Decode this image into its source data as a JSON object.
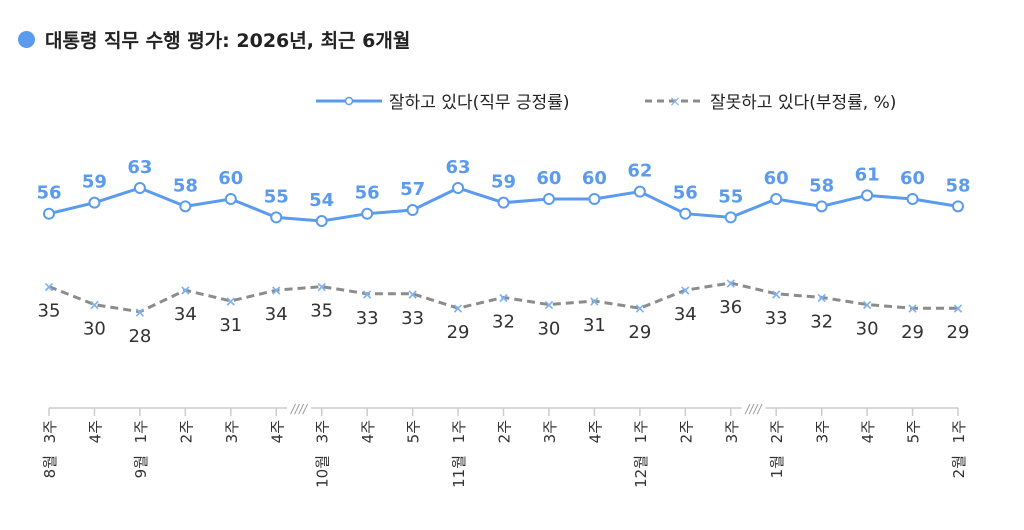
{
  "title": "대통령 직무 수행 평가: 2026년, 최근 6개월",
  "colors": {
    "positive": "#5b9bed",
    "negative": "#8c8c8c",
    "negative_marker": "#7fb3f0",
    "axis": "#cccccc",
    "title_dot": "#5b9bed"
  },
  "chart_data": {
    "type": "line",
    "title": "대통령 직무 수행 평가: 2026년, 최근 6개월",
    "x_weeks": [
      "3주",
      "4주",
      "1주",
      "2주",
      "3주",
      "4주",
      "3주",
      "4주",
      "5주",
      "1주",
      "2주",
      "3주",
      "4주",
      "1주",
      "2주",
      "3주",
      "2주",
      "3주",
      "4주",
      "5주",
      "1주"
    ],
    "x_months": [
      "8월",
      "",
      "9월",
      "",
      "",
      "",
      "10월",
      "",
      "",
      "11월",
      "",
      "",
      "",
      "12월",
      "",
      "",
      "1월",
      "",
      "",
      "",
      "2월"
    ],
    "axis_breaks_after_index": [
      5,
      15
    ],
    "axis_break_label": "////",
    "series": [
      {
        "name": "잘하고 있다(직무 긍정률)",
        "values": [
          56,
          59,
          63,
          58,
          60,
          55,
          54,
          56,
          57,
          63,
          59,
          60,
          60,
          62,
          56,
          55,
          60,
          58,
          61,
          60,
          58
        ]
      },
      {
        "name": "잘못하고 있다(부정률, %)",
        "values": [
          35,
          30,
          28,
          34,
          31,
          34,
          35,
          33,
          33,
          29,
          32,
          30,
          31,
          29,
          34,
          36,
          33,
          32,
          30,
          29,
          29
        ]
      }
    ],
    "legend": "top-right",
    "grid": false
  }
}
